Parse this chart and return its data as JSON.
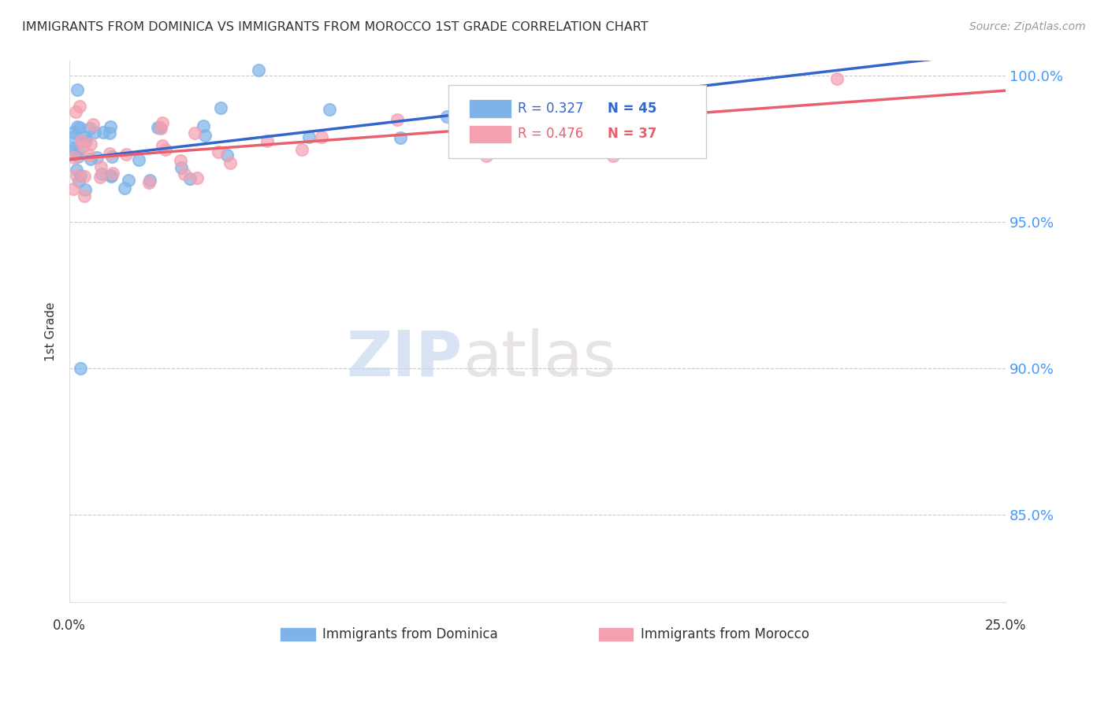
{
  "title": "IMMIGRANTS FROM DOMINICA VS IMMIGRANTS FROM MOROCCO 1ST GRADE CORRELATION CHART",
  "source": "Source: ZipAtlas.com",
  "ylabel": "1st Grade",
  "xlim": [
    0.0,
    0.25
  ],
  "ylim": [
    0.82,
    1.005
  ],
  "yticks": [
    0.85,
    0.9,
    0.95,
    1.0
  ],
  "ytick_labels": [
    "85.0%",
    "90.0%",
    "95.0%",
    "100.0%"
  ],
  "dominica_color": "#7EB3E8",
  "morocco_color": "#F4A0B0",
  "dominica_line_color": "#3366CC",
  "morocco_line_color": "#E86070",
  "legend_R_dominica": "R = 0.327",
  "legend_N_dominica": "N = 45",
  "legend_R_morocco": "R = 0.476",
  "legend_N_morocco": "N = 37",
  "watermark_zip": "ZIP",
  "watermark_atlas": "atlas",
  "background_color": "#ffffff",
  "grid_color": "#cccccc",
  "right_axis_color": "#4499FF",
  "legend_color_dominica": "#3366CC",
  "legend_color_morocco": "#E86070"
}
